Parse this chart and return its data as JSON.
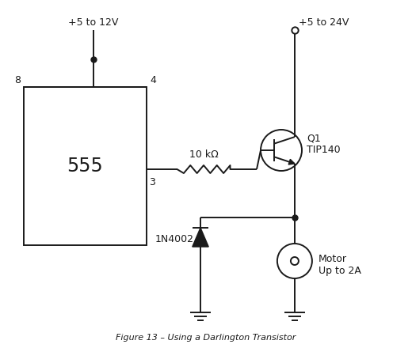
{
  "title": "Figure 13 – Using a Darlington Transistor",
  "bg_color": "#ffffff",
  "line_color": "#1a1a1a",
  "text_color": "#1a1a1a",
  "fig_width": 5.2,
  "fig_height": 4.4,
  "dpi": 100,
  "vcc1_label": "+5 to 12V",
  "vcc2_label": "+5 to 24V",
  "ic_label": "555",
  "pin8_label": "8",
  "pin4_label": "4",
  "pin3_label": "3",
  "resistor_label": "10 kΩ",
  "transistor_label": "Q1\nTIP140",
  "diode_label": "1N4002",
  "motor_label": "Motor\nUp to 2A",
  "caption": "Figure 13 – Using a Darlington Transistor"
}
